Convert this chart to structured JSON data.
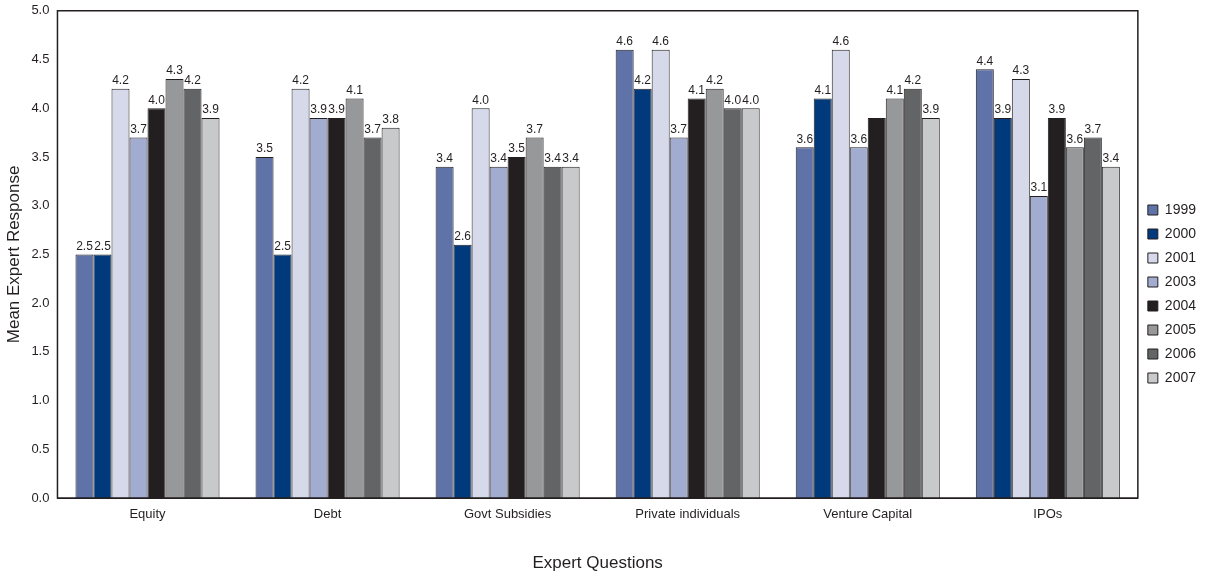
{
  "chart_data": {
    "type": "bar",
    "xlabel": "Expert Questions",
    "ylabel": "Mean Expert Response",
    "categories": [
      "Equity",
      "Debt",
      "Govt Subsidies",
      "Private individuals",
      "Venture Capital",
      "IPOs"
    ],
    "series": [
      {
        "name": "1999",
        "color": "#5f73a8",
        "values": [
          2.5,
          3.5,
          3.4,
          4.6,
          3.6,
          4.4
        ],
        "value_labels": [
          "2.5",
          "3.5",
          "3.4",
          "4.6",
          "3.6",
          "4.4"
        ]
      },
      {
        "name": "2000",
        "color": "#003a7c",
        "values": [
          2.5,
          2.5,
          2.6,
          4.2,
          4.1,
          3.9
        ],
        "value_labels": [
          "2.5",
          "2.5",
          "2.6",
          "4.2",
          "4.1",
          "3.9"
        ]
      },
      {
        "name": "2001",
        "color": "#d6d9ea",
        "values": [
          4.2,
          4.2,
          4.0,
          4.6,
          4.6,
          4.3
        ],
        "value_labels": [
          "4.2",
          "4.2",
          "4.0",
          "4.6",
          "4.6",
          "4.3"
        ]
      },
      {
        "name": "2003",
        "color": "#a2abd0",
        "values": [
          3.7,
          3.9,
          3.4,
          3.7,
          3.6,
          3.1
        ],
        "value_labels": [
          "3.7",
          "3.9",
          "3.4",
          "3.7",
          "3.6",
          "3.1"
        ]
      },
      {
        "name": "2004",
        "color": "#231f20",
        "values": [
          4.0,
          3.9,
          3.5,
          4.1,
          3.9,
          3.9
        ],
        "value_labels": [
          "4.0",
          "3.9",
          "3.5",
          "4.1",
          null,
          "3.9"
        ]
      },
      {
        "name": "2005",
        "color": "#979899",
        "values": [
          4.3,
          4.1,
          3.7,
          4.2,
          4.1,
          3.6
        ],
        "value_labels": [
          "4.3",
          "4.1",
          "3.7",
          "4.2",
          "4.1",
          "3.6"
        ]
      },
      {
        "name": "2006",
        "color": "#636466",
        "values": [
          4.2,
          3.7,
          3.4,
          4.0,
          4.2,
          3.7
        ],
        "value_labels": [
          "4.2",
          "3.7",
          "3.4",
          "4.0",
          "4.2",
          "3.7"
        ]
      },
      {
        "name": "2007",
        "color": "#c8c9cb",
        "values": [
          3.9,
          3.8,
          3.4,
          4.0,
          3.9,
          3.4
        ],
        "value_labels": [
          "3.9",
          "3.8",
          "3.4",
          "4.0",
          "3.9",
          "3.4"
        ]
      }
    ],
    "ylim": [
      0,
      5
    ],
    "yticks": [
      {
        "value": 0,
        "label": "0.0"
      },
      {
        "value": 0.5,
        "label": "0.5"
      },
      {
        "value": 1,
        "label": "1.0"
      },
      {
        "value": 1.5,
        "label": "1.5"
      },
      {
        "value": 2,
        "label": "2.0"
      },
      {
        "value": 2.5,
        "label": "2.5"
      },
      {
        "value": 3,
        "label": "3.0"
      },
      {
        "value": 3.5,
        "label": "3.5"
      },
      {
        "value": 4,
        "label": "4.0"
      },
      {
        "value": 4.5,
        "label": "4.5"
      },
      {
        "value": 5,
        "label": "5.0"
      }
    ],
    "grid": false,
    "legend": "right"
  }
}
